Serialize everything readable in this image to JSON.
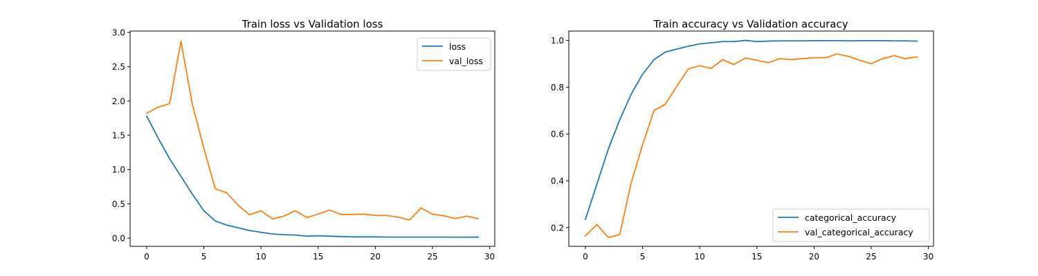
{
  "chart_data": [
    {
      "type": "line",
      "title": "Train loss vs Validation loss",
      "xlabel": "",
      "ylabel": "",
      "xlim": [
        -1.45,
        30.45
      ],
      "ylim": [
        -0.12,
        3.02
      ],
      "xticks": [
        0,
        5,
        10,
        15,
        20,
        25,
        30
      ],
      "yticks": [
        0.0,
        0.5,
        1.0,
        1.5,
        2.0,
        2.5,
        3.0
      ],
      "ytick_labels": [
        "0.0",
        "0.5",
        "1.0",
        "1.5",
        "2.0",
        "2.5",
        "3.0"
      ],
      "grid": false,
      "legend_position": "top-right",
      "x": [
        0,
        1,
        2,
        3,
        4,
        5,
        6,
        7,
        8,
        9,
        10,
        11,
        12,
        13,
        14,
        15,
        16,
        17,
        18,
        19,
        20,
        21,
        22,
        23,
        24,
        25,
        26,
        27,
        28,
        29
      ],
      "series": [
        {
          "name": "loss",
          "color": "#1f77b4",
          "values": [
            1.78,
            1.46,
            1.16,
            0.9,
            0.64,
            0.4,
            0.25,
            0.19,
            0.15,
            0.11,
            0.085,
            0.06,
            0.05,
            0.045,
            0.028,
            0.035,
            0.028,
            0.023,
            0.018,
            0.018,
            0.018,
            0.015,
            0.015,
            0.015,
            0.015,
            0.015,
            0.015,
            0.013,
            0.013,
            0.015
          ]
        },
        {
          "name": "val_loss",
          "color": "#ff7f0e",
          "values": [
            1.82,
            1.91,
            1.96,
            2.87,
            1.95,
            1.31,
            0.72,
            0.66,
            0.48,
            0.34,
            0.4,
            0.28,
            0.32,
            0.4,
            0.3,
            0.35,
            0.41,
            0.345,
            0.345,
            0.35,
            0.33,
            0.33,
            0.305,
            0.265,
            0.44,
            0.35,
            0.325,
            0.285,
            0.32,
            0.285
          ]
        }
      ]
    },
    {
      "type": "line",
      "title": "Train accuracy vs Validation accuracy",
      "xlabel": "",
      "ylabel": "",
      "xlim": [
        -1.45,
        30.45
      ],
      "ylim": [
        0.12,
        1.04
      ],
      "xticks": [
        0,
        5,
        10,
        15,
        20,
        25,
        30
      ],
      "yticks": [
        0.2,
        0.4,
        0.6,
        0.8,
        1.0
      ],
      "ytick_labels": [
        "0.2",
        "0.4",
        "0.6",
        "0.8",
        "1.0"
      ],
      "grid": false,
      "legend_position": "bottom-right",
      "x": [
        0,
        1,
        2,
        3,
        4,
        5,
        6,
        7,
        8,
        9,
        10,
        11,
        12,
        13,
        14,
        15,
        16,
        17,
        18,
        19,
        20,
        21,
        22,
        23,
        24,
        25,
        26,
        27,
        28,
        29
      ],
      "series": [
        {
          "name": "categorical_accuracy",
          "color": "#1f77b4",
          "values": [
            0.235,
            0.385,
            0.535,
            0.66,
            0.77,
            0.855,
            0.918,
            0.95,
            0.963,
            0.975,
            0.985,
            0.99,
            0.995,
            0.995,
            1.0,
            0.995,
            0.997,
            0.998,
            0.998,
            0.998,
            0.999,
            0.999,
            0.999,
            0.998,
            0.999,
            0.999,
            0.999,
            0.998,
            0.998,
            0.997
          ]
        },
        {
          "name": "val_categorical_accuracy",
          "color": "#ff7f0e",
          "values": [
            0.165,
            0.213,
            0.158,
            0.17,
            0.39,
            0.555,
            0.7,
            0.728,
            0.805,
            0.878,
            0.892,
            0.88,
            0.918,
            0.897,
            0.925,
            0.915,
            0.905,
            0.922,
            0.918,
            0.922,
            0.926,
            0.926,
            0.942,
            0.932,
            0.915,
            0.9,
            0.922,
            0.935,
            0.922,
            0.93
          ]
        }
      ]
    }
  ]
}
